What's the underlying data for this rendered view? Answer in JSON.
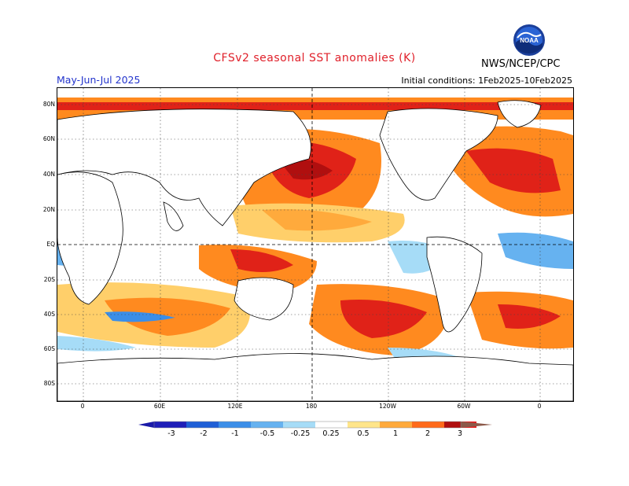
{
  "header": {
    "title": "CFSv2 seasonal SST anomalies (K)",
    "title_color": "#e0202a",
    "period": "May-Jun-Jul 2025",
    "period_color": "#2233cc",
    "initial_conditions": "Initial conditions:  1Feb2025-10Feb2025",
    "agency": "NWS/NCEP/CPC",
    "logo_text": "NOAA",
    "logo_icon": "noaa-logo"
  },
  "map": {
    "lat_labels": [
      "80N",
      "60N",
      "40N",
      "20N",
      "EQ",
      "20S",
      "40S",
      "60S",
      "80S"
    ],
    "lon_labels": [
      "0",
      "60E",
      "120E",
      "180",
      "120W",
      "60W",
      "0"
    ],
    "projection": "cylindrical equidistant",
    "grid": "dotted"
  },
  "colorbar": {
    "labels": [
      "-3",
      "-2",
      "-1",
      "-0.5",
      "-0.25",
      "0.25",
      "0.5",
      "1",
      "2",
      "3"
    ],
    "colors": [
      "#1a1aa8",
      "#1f5fd6",
      "#3b8ee8",
      "#66b2f0",
      "#a6dcf7",
      "#ffffff",
      "#ffe58a",
      "#ffaa3c",
      "#ff6a1a",
      "#e41e1e",
      "#b00f0f",
      "#8c5a4a"
    ]
  }
}
